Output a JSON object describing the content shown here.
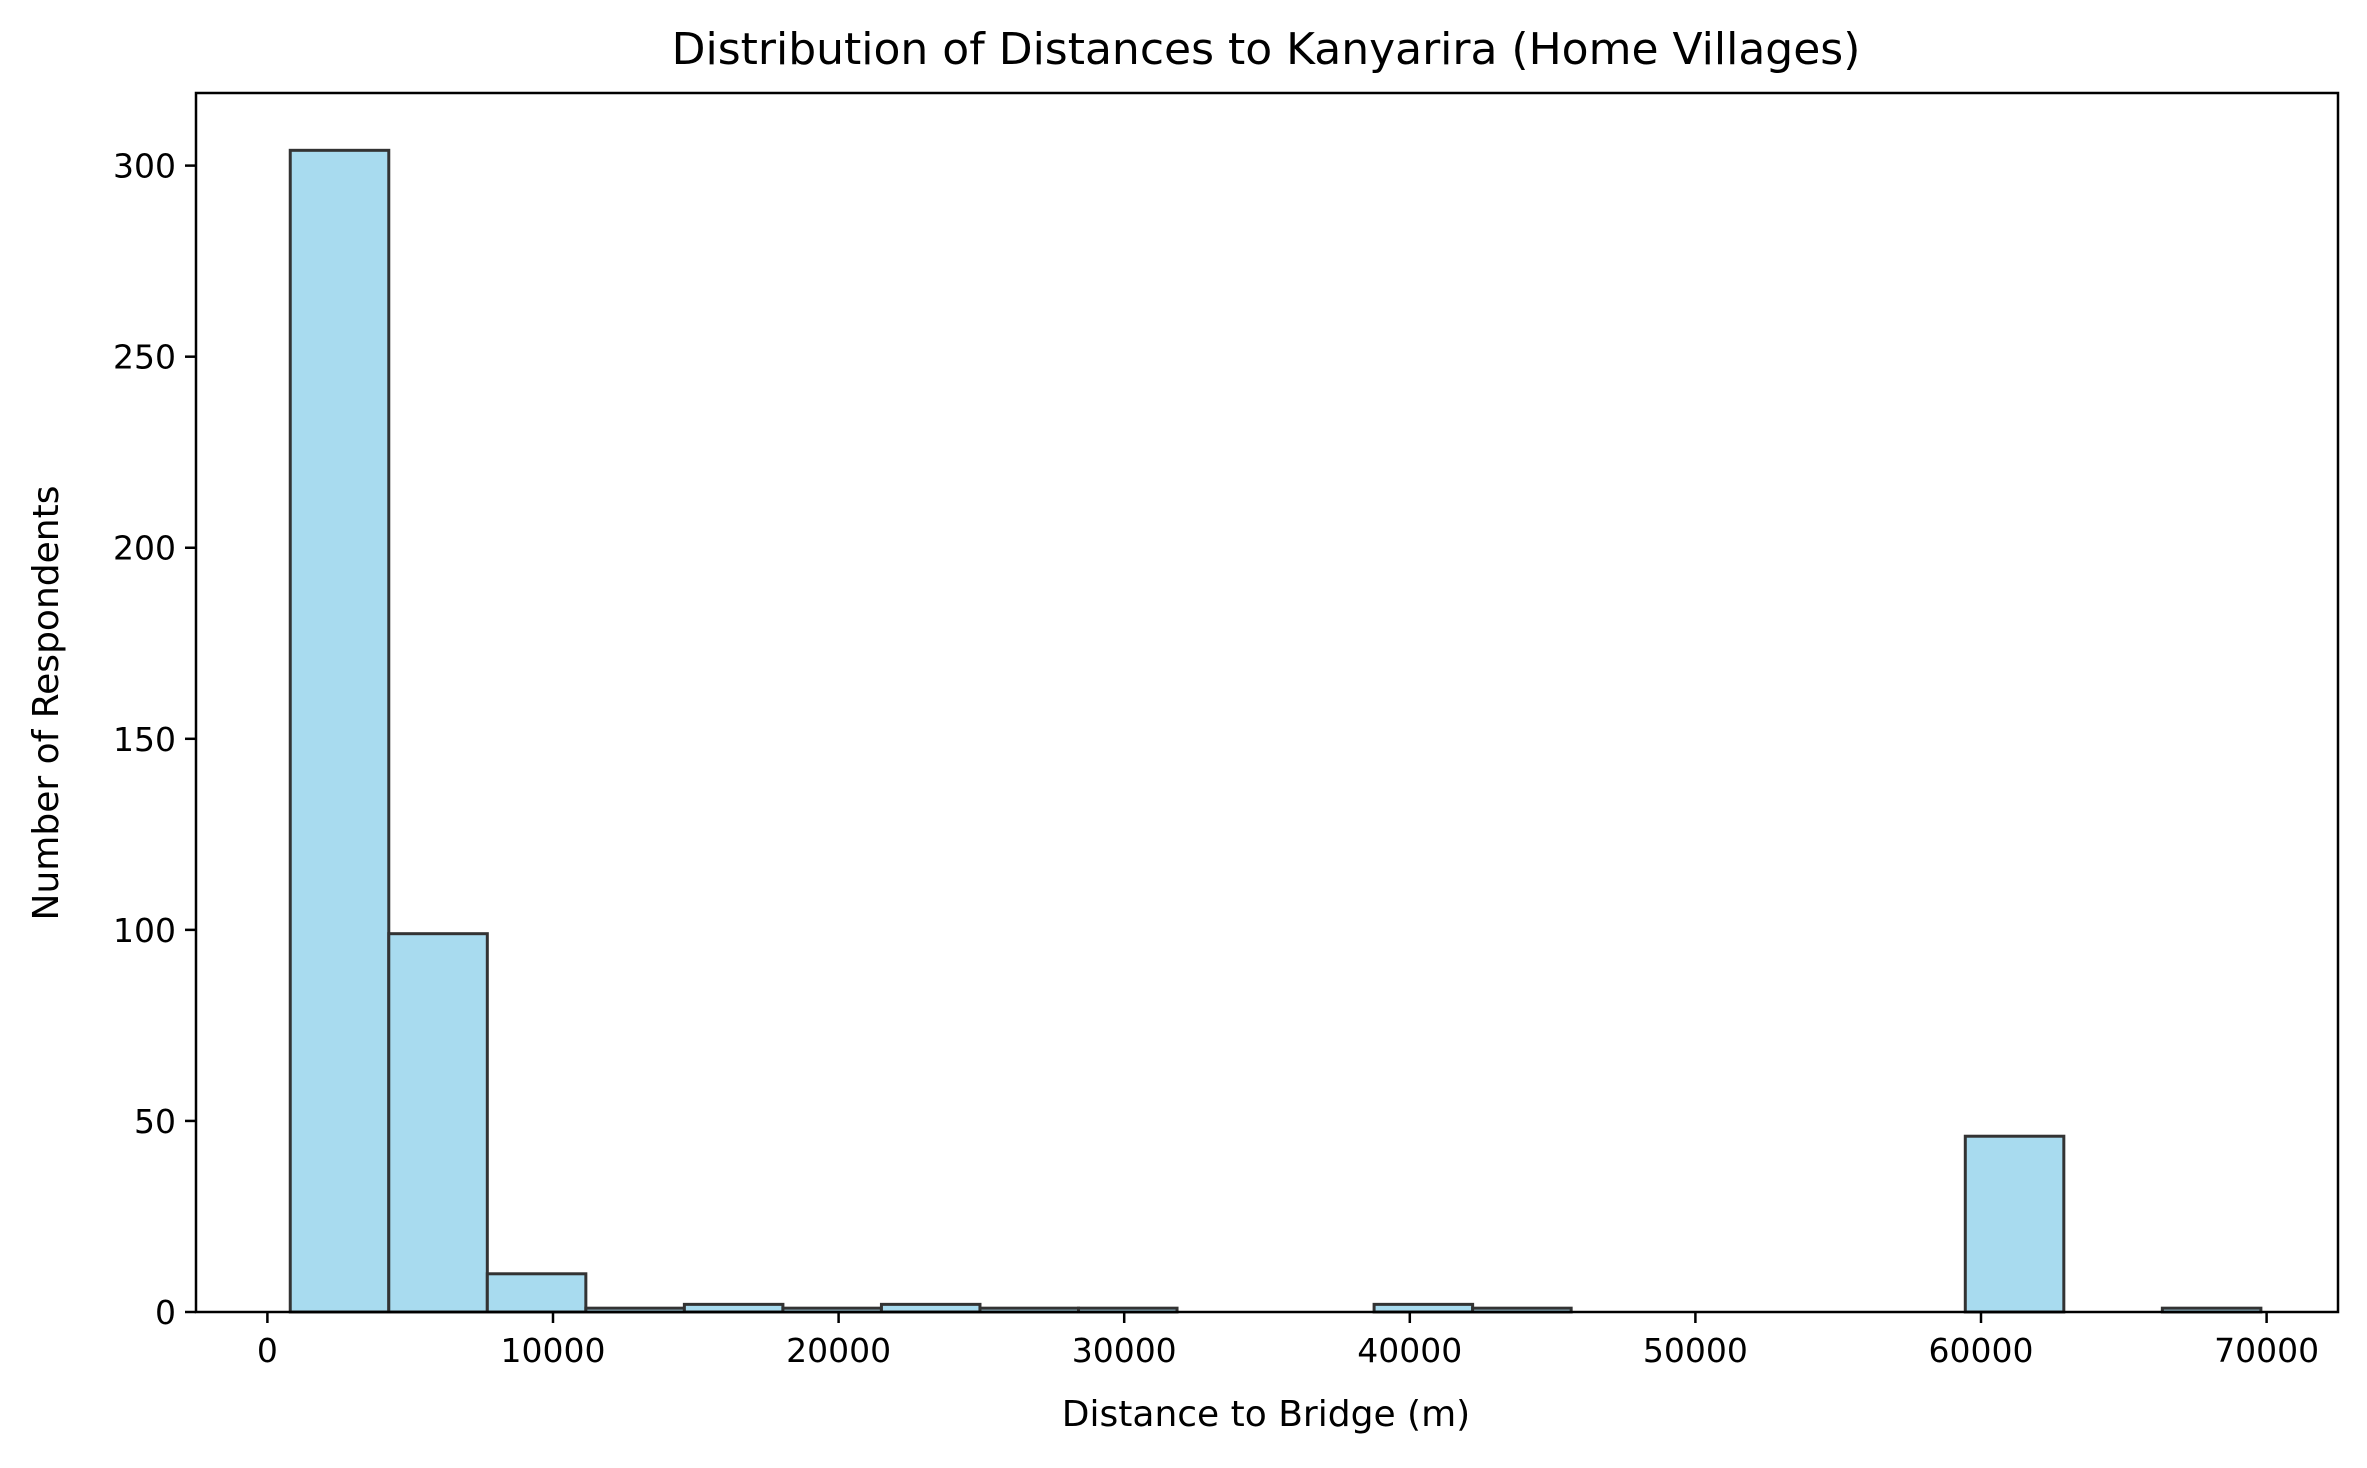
{
  "chart_data": {
    "type": "bar",
    "title": "Distribution of Distances to Kanyarira (Home Villages)",
    "xlabel": "Distance to Bridge (m)",
    "ylabel": "Number of Respondents",
    "xlim": [
      -2500,
      72500
    ],
    "ylim": [
      0,
      319
    ],
    "xticks": [
      0,
      10000,
      20000,
      30000,
      40000,
      50000,
      60000,
      70000
    ],
    "xtick_labels": [
      "0",
      "10000",
      "20000",
      "30000",
      "40000",
      "50000",
      "60000",
      "70000"
    ],
    "yticks": [
      0,
      50,
      100,
      150,
      200,
      250,
      300
    ],
    "ytick_labels": [
      "0",
      "50",
      "100",
      "150",
      "200",
      "250",
      "300"
    ],
    "bins": [
      {
        "x0": 800,
        "x1": 4250,
        "count": 304
      },
      {
        "x0": 4250,
        "x1": 7700,
        "count": 99
      },
      {
        "x0": 7700,
        "x1": 11150,
        "count": 10
      },
      {
        "x0": 11150,
        "x1": 14600,
        "count": 1
      },
      {
        "x0": 14600,
        "x1": 18050,
        "count": 2
      },
      {
        "x0": 18050,
        "x1": 21500,
        "count": 1
      },
      {
        "x0": 21500,
        "x1": 24950,
        "count": 2
      },
      {
        "x0": 24950,
        "x1": 28400,
        "count": 1
      },
      {
        "x0": 28400,
        "x1": 31850,
        "count": 1
      },
      {
        "x0": 31850,
        "x1": 35300,
        "count": 0
      },
      {
        "x0": 35300,
        "x1": 38750,
        "count": 0
      },
      {
        "x0": 38750,
        "x1": 42200,
        "count": 2
      },
      {
        "x0": 42200,
        "x1": 45650,
        "count": 1
      },
      {
        "x0": 45650,
        "x1": 49100,
        "count": 0
      },
      {
        "x0": 49100,
        "x1": 52550,
        "count": 0
      },
      {
        "x0": 52550,
        "x1": 56000,
        "count": 0
      },
      {
        "x0": 56000,
        "x1": 59450,
        "count": 0
      },
      {
        "x0": 59450,
        "x1": 62900,
        "count": 46
      },
      {
        "x0": 62900,
        "x1": 66350,
        "count": 0
      },
      {
        "x0": 66350,
        "x1": 69800,
        "count": 1
      }
    ],
    "bar_color": "#a8dbef",
    "edge_color": "#333333",
    "grid": false
  }
}
